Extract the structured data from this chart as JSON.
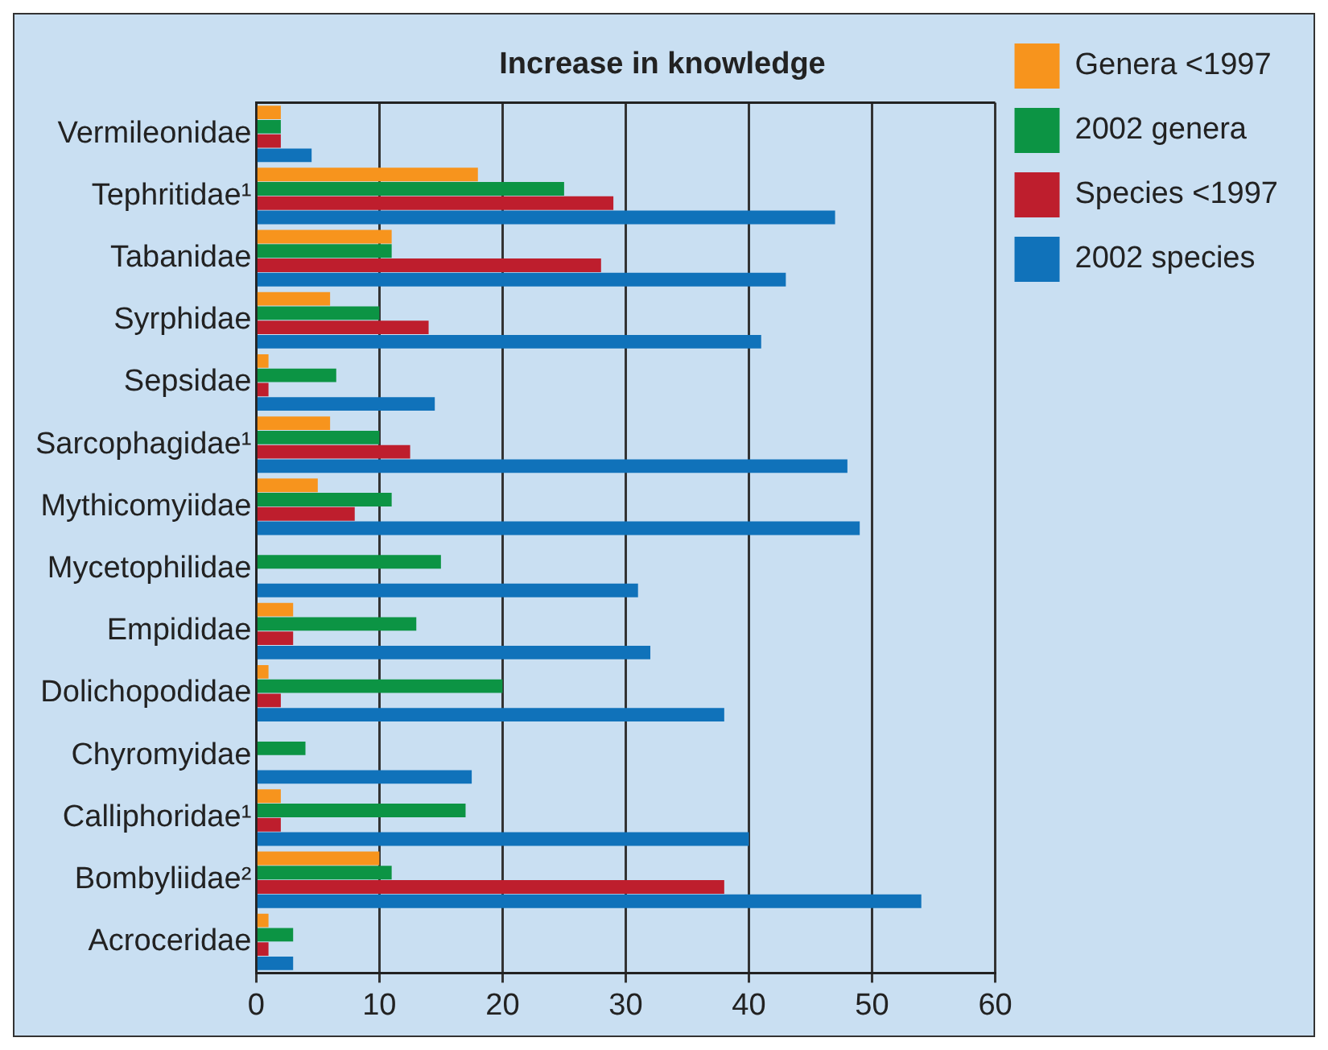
{
  "chart_data": {
    "type": "bar",
    "orientation": "horizontal",
    "title": "Increase in knowledge",
    "categories": [
      "Vermileonidae",
      "Tephritidae¹",
      "Tabanidae",
      "Syrphidae",
      "Sepsidae",
      "Sarcophagidae¹",
      "Mythicomyiidae",
      "Mycetophilidae",
      "Empididae",
      "Dolichopodidae",
      "Chyromyidae",
      "Calliphoridae¹",
      "Bombyliidae²",
      "Acroceridae"
    ],
    "series": [
      {
        "name": "Genera <1997",
        "color": "#f7941d",
        "values": [
          2,
          18,
          11,
          6,
          1,
          6,
          5,
          null,
          3,
          1,
          null,
          2,
          10,
          1
        ]
      },
      {
        "name": "2002 genera",
        "color": "#0c9444",
        "values": [
          2,
          25,
          11,
          10,
          6.5,
          10,
          11,
          15,
          13,
          20,
          4,
          17,
          11,
          3
        ]
      },
      {
        "name": "Species <1997",
        "color": "#be1e2d",
        "values": [
          2,
          29,
          28,
          14,
          1,
          12.5,
          8,
          null,
          3,
          2,
          null,
          2,
          38,
          1
        ]
      },
      {
        "name": "2002 species",
        "color": "#1072ba",
        "values": [
          4.5,
          47,
          43,
          41,
          14.5,
          48,
          49,
          31,
          32,
          38,
          17.5,
          40,
          54,
          3
        ]
      }
    ],
    "xlim": [
      0,
      60
    ],
    "xticks": [
      0,
      10,
      20,
      30,
      40,
      50,
      60
    ],
    "grid": "x",
    "legend": "right"
  }
}
